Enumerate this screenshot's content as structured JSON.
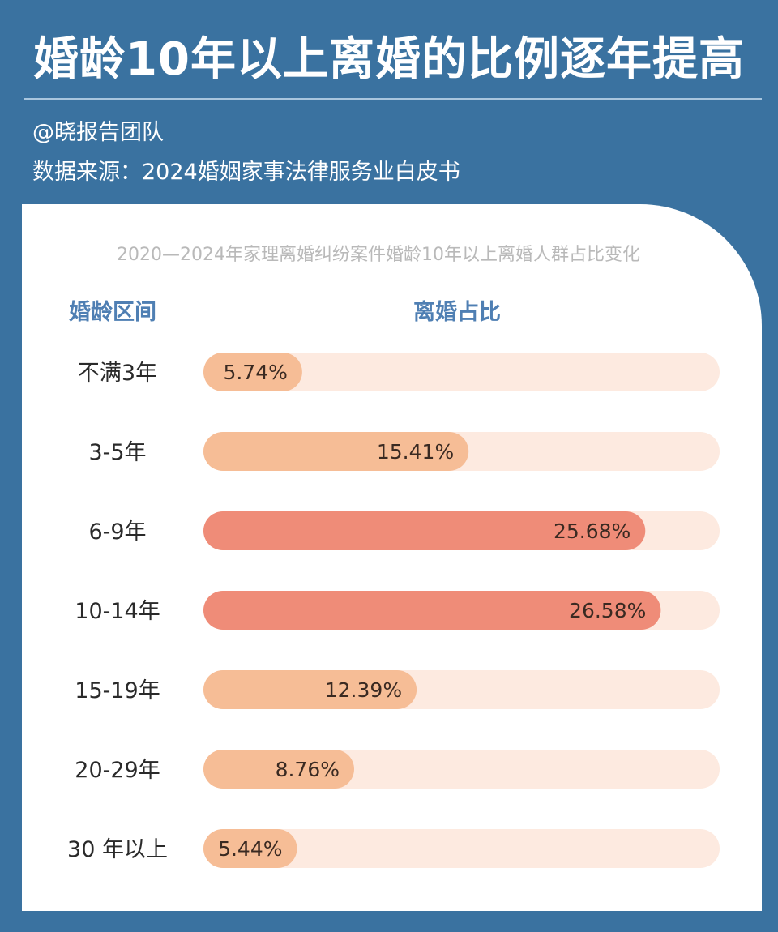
{
  "header": {
    "title": "婚龄10年以上离婚的比例逐年提高",
    "author": "@晓报告团队",
    "source": "数据来源：2024婚姻家事法律服务业白皮书"
  },
  "chart_data": {
    "type": "bar",
    "orientation": "horizontal",
    "title": "2020—2024年家理离婚纠纷案件婚龄10年以上离婚人群占比变化",
    "category_header": "婚龄区间",
    "value_header": "离婚占比",
    "categories": [
      "不满3年",
      "3-5年",
      "6-9年",
      "10-14年",
      "15-19年",
      "20-29年",
      "30 年以上"
    ],
    "values": [
      5.74,
      15.41,
      25.68,
      26.58,
      12.39,
      8.76,
      5.44
    ],
    "value_labels": [
      "5.74%",
      "15.41%",
      "25.68%",
      "26.58%",
      "12.39%",
      "8.76%",
      "5.44%"
    ],
    "unit": "%",
    "xlim": [
      0,
      30
    ],
    "grid": false,
    "colors": {
      "track": "#fdeae0",
      "bar_default": "#f6bd96",
      "bar_highlight": "#ef8c78"
    },
    "highlight_categories": [
      "6-9年",
      "10-14年"
    ]
  }
}
